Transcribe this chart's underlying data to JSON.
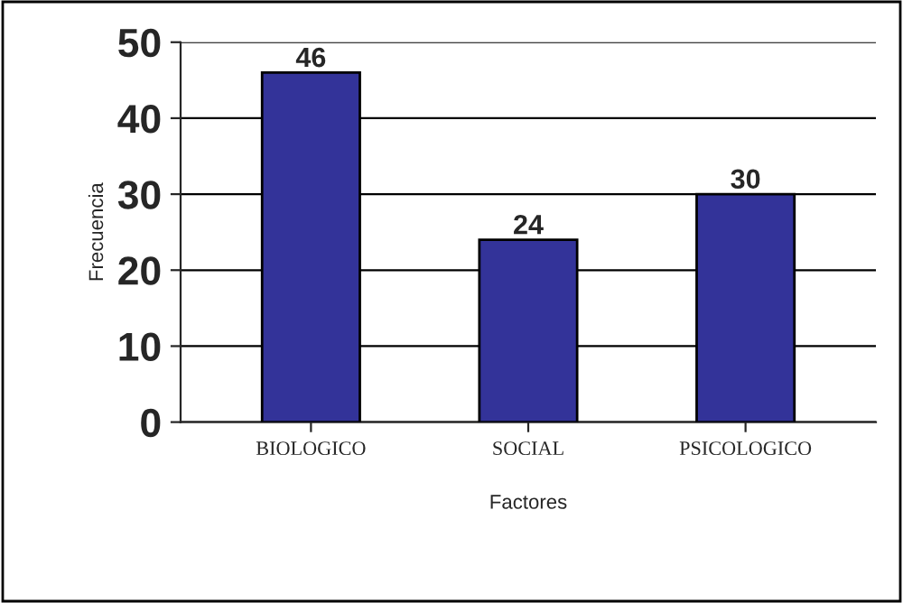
{
  "chart_data": {
    "type": "bar",
    "xlabel": "Factores",
    "ylabel": "Frecuencia",
    "categories": [
      "BIOLOGICO",
      "SOCIAL",
      "PSICOLOGICO"
    ],
    "values": [
      46,
      24,
      30
    ],
    "color": "#333399",
    "ylim": [
      0,
      50
    ],
    "yticks": [
      0,
      10,
      20,
      30,
      40,
      50
    ],
    "grid": "y",
    "data_labels": true,
    "legend": false
  }
}
